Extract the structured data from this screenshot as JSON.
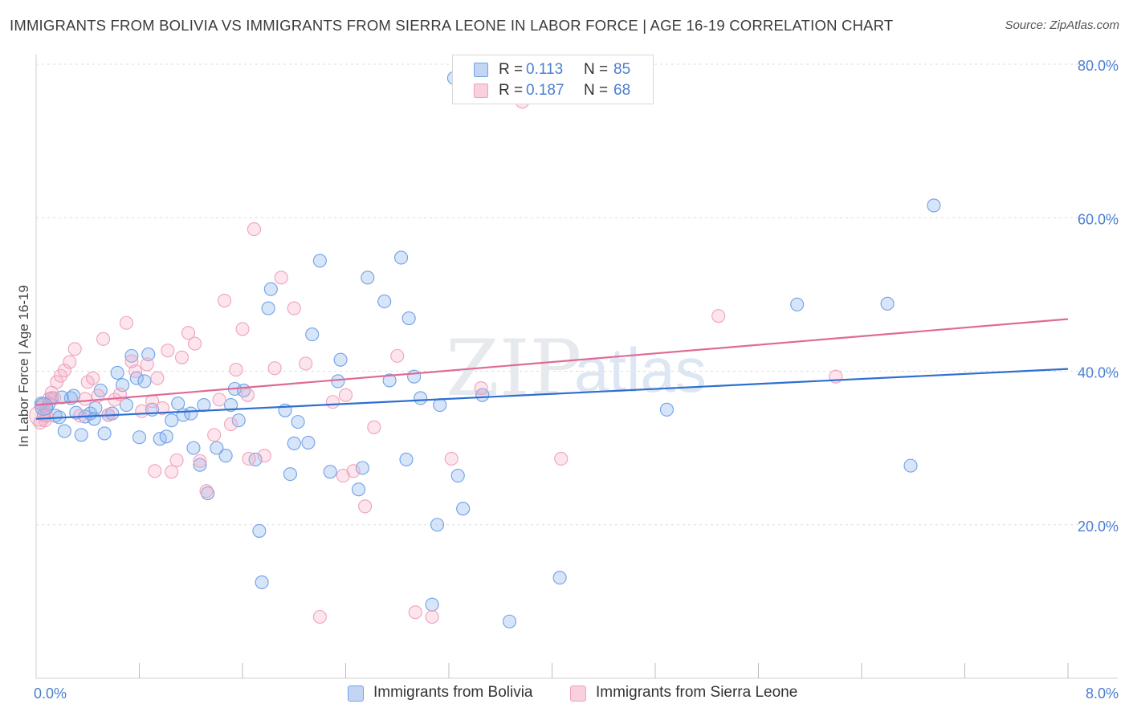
{
  "title": "IMMIGRANTS FROM BOLIVIA VS IMMIGRANTS FROM SIERRA LEONE IN LABOR FORCE | AGE 16-19 CORRELATION CHART",
  "source": "Source: ZipAtlas.com",
  "watermark": {
    "zip": "ZIP",
    "atlas": "atlas"
  },
  "legend": {
    "r_label": "R =",
    "n_label": "N =",
    "rows": [
      {
        "r": "0.113",
        "n": "85"
      },
      {
        "r": "0.187",
        "n": "68"
      }
    ]
  },
  "chart_data": {
    "type": "scatter",
    "title": "IMMIGRANTS FROM BOLIVIA VS IMMIGRANTS FROM SIERRA LEONE IN LABOR FORCE | AGE 16-19 CORRELATION CHART",
    "xlabel": "",
    "ylabel": "In Labor Force | Age 16-19",
    "xlim": [
      0,
      8
    ],
    "ylim": [
      0,
      80
    ],
    "x_tick_labels": [
      "0.0%",
      "8.0%"
    ],
    "y_ticks": [
      20,
      40,
      60,
      80
    ],
    "y_tick_labels": [
      "20.0%",
      "40.0%",
      "60.0%",
      "80.0%"
    ],
    "grid": true,
    "legend_position": "bottom",
    "colors": {
      "bolivia": "#6fa1e8",
      "sierra_leone": "#f0a2ba",
      "bolivia_line": "#2f6fd0",
      "sierra_leone_line": "#e06a95",
      "tick_label": "#4a7fd0"
    },
    "series": [
      {
        "name": "Immigrants from Bolivia",
        "r": 0.113,
        "n": 85,
        "trend": [
          [
            0,
            33.8
          ],
          [
            8,
            40.3
          ]
        ],
        "points": [
          [
            0.04,
            35.8
          ],
          [
            0.06,
            34.3
          ],
          [
            0.08,
            35.2
          ],
          [
            0.12,
            36.5
          ],
          [
            0.15,
            34.2
          ],
          [
            0.18,
            34.0
          ],
          [
            0.22,
            32.2
          ],
          [
            0.27,
            36.5
          ],
          [
            0.29,
            36.8
          ],
          [
            0.31,
            34.6
          ],
          [
            0.35,
            31.7
          ],
          [
            0.38,
            34.1
          ],
          [
            0.42,
            34.5
          ],
          [
            0.46,
            35.2
          ],
          [
            0.5,
            37.5
          ],
          [
            0.53,
            31.9
          ],
          [
            0.56,
            34.3
          ],
          [
            0.59,
            34.5
          ],
          [
            0.63,
            39.8
          ],
          [
            0.67,
            38.2
          ],
          [
            0.7,
            35.6
          ],
          [
            0.74,
            42.0
          ],
          [
            0.78,
            39.1
          ],
          [
            0.8,
            31.4
          ],
          [
            0.84,
            38.7
          ],
          [
            0.87,
            42.2
          ],
          [
            0.9,
            35.0
          ],
          [
            0.96,
            31.2
          ],
          [
            1.01,
            31.5
          ],
          [
            1.05,
            33.6
          ],
          [
            1.1,
            35.8
          ],
          [
            1.14,
            34.3
          ],
          [
            1.22,
            30.0
          ],
          [
            1.27,
            27.8
          ],
          [
            1.3,
            35.6
          ],
          [
            1.33,
            24.1
          ],
          [
            1.4,
            30.0
          ],
          [
            1.47,
            29.0
          ],
          [
            1.51,
            35.6
          ],
          [
            1.54,
            37.7
          ],
          [
            1.57,
            33.6
          ],
          [
            1.61,
            37.5
          ],
          [
            1.7,
            28.5
          ],
          [
            1.73,
            19.2
          ],
          [
            1.75,
            12.5
          ],
          [
            1.8,
            48.2
          ],
          [
            1.82,
            50.7
          ],
          [
            1.93,
            34.9
          ],
          [
            1.97,
            26.6
          ],
          [
            2.03,
            33.4
          ],
          [
            2.11,
            30.7
          ],
          [
            2.14,
            44.8
          ],
          [
            2.2,
            54.4
          ],
          [
            2.28,
            26.9
          ],
          [
            2.34,
            38.7
          ],
          [
            2.36,
            41.5
          ],
          [
            2.5,
            24.6
          ],
          [
            2.53,
            27.4
          ],
          [
            2.57,
            52.2
          ],
          [
            2.7,
            49.1
          ],
          [
            2.74,
            38.8
          ],
          [
            2.83,
            54.8
          ],
          [
            2.87,
            28.5
          ],
          [
            2.89,
            46.9
          ],
          [
            2.93,
            39.3
          ],
          [
            2.98,
            36.5
          ],
          [
            3.07,
            9.6
          ],
          [
            3.11,
            20.0
          ],
          [
            3.13,
            35.6
          ],
          [
            3.24,
            78.2
          ],
          [
            3.27,
            26.4
          ],
          [
            3.31,
            22.1
          ],
          [
            3.46,
            36.9
          ],
          [
            3.67,
            7.4
          ],
          [
            4.06,
            13.1
          ],
          [
            4.89,
            35.0
          ],
          [
            5.9,
            48.7
          ],
          [
            6.6,
            48.8
          ],
          [
            6.78,
            27.7
          ],
          [
            6.96,
            61.6
          ],
          [
            0.1,
            35.8
          ],
          [
            0.2,
            36.6
          ],
          [
            0.45,
            33.8
          ],
          [
            1.2,
            34.5
          ],
          [
            2.0,
            30.6
          ]
        ]
      },
      {
        "name": "Immigrants from Sierra Leone",
        "r": 0.187,
        "n": 68,
        "trend": [
          [
            0,
            35.6
          ],
          [
            8,
            46.8
          ]
        ],
        "points": [
          [
            0.03,
            33.3
          ],
          [
            0.05,
            35.5
          ],
          [
            0.08,
            34.2
          ],
          [
            0.1,
            36.4
          ],
          [
            0.12,
            37.2
          ],
          [
            0.16,
            38.6
          ],
          [
            0.19,
            39.4
          ],
          [
            0.22,
            40.1
          ],
          [
            0.26,
            41.2
          ],
          [
            0.3,
            42.9
          ],
          [
            0.34,
            34.2
          ],
          [
            0.38,
            36.4
          ],
          [
            0.4,
            38.6
          ],
          [
            0.44,
            39.1
          ],
          [
            0.48,
            36.8
          ],
          [
            0.52,
            44.2
          ],
          [
            0.56,
            34.3
          ],
          [
            0.61,
            36.3
          ],
          [
            0.65,
            37.0
          ],
          [
            0.7,
            46.3
          ],
          [
            0.74,
            41.3
          ],
          [
            0.77,
            40.0
          ],
          [
            0.82,
            34.8
          ],
          [
            0.86,
            40.9
          ],
          [
            0.9,
            36.1
          ],
          [
            0.94,
            39.1
          ],
          [
            0.98,
            35.2
          ],
          [
            1.02,
            42.7
          ],
          [
            1.05,
            26.9
          ],
          [
            1.09,
            28.4
          ],
          [
            1.13,
            41.8
          ],
          [
            1.18,
            45.0
          ],
          [
            1.23,
            43.6
          ],
          [
            1.27,
            28.3
          ],
          [
            1.32,
            24.4
          ],
          [
            1.38,
            31.7
          ],
          [
            1.42,
            36.3
          ],
          [
            1.46,
            49.2
          ],
          [
            1.51,
            33.1
          ],
          [
            1.55,
            40.2
          ],
          [
            1.6,
            45.5
          ],
          [
            1.64,
            36.9
          ],
          [
            1.69,
            58.5
          ],
          [
            1.77,
            29.0
          ],
          [
            1.85,
            40.4
          ],
          [
            1.9,
            52.2
          ],
          [
            2.0,
            48.2
          ],
          [
            2.09,
            41.0
          ],
          [
            2.2,
            8.0
          ],
          [
            2.3,
            36.0
          ],
          [
            2.38,
            26.4
          ],
          [
            2.46,
            27.0
          ],
          [
            2.55,
            22.4
          ],
          [
            2.62,
            32.7
          ],
          [
            2.8,
            42.0
          ],
          [
            2.94,
            8.6
          ],
          [
            3.07,
            8.0
          ],
          [
            3.22,
            28.6
          ],
          [
            3.45,
            37.8
          ],
          [
            4.07,
            28.6
          ],
          [
            3.77,
            75.1
          ],
          [
            5.29,
            47.2
          ],
          [
            6.2,
            39.3
          ],
          [
            0.07,
            33.6
          ],
          [
            0.14,
            36.5
          ],
          [
            0.92,
            27.0
          ],
          [
            1.65,
            28.6
          ],
          [
            2.4,
            36.9
          ]
        ]
      }
    ]
  },
  "bottom_legend": [
    "Immigrants from Bolivia",
    "Immigrants from Sierra Leone"
  ]
}
